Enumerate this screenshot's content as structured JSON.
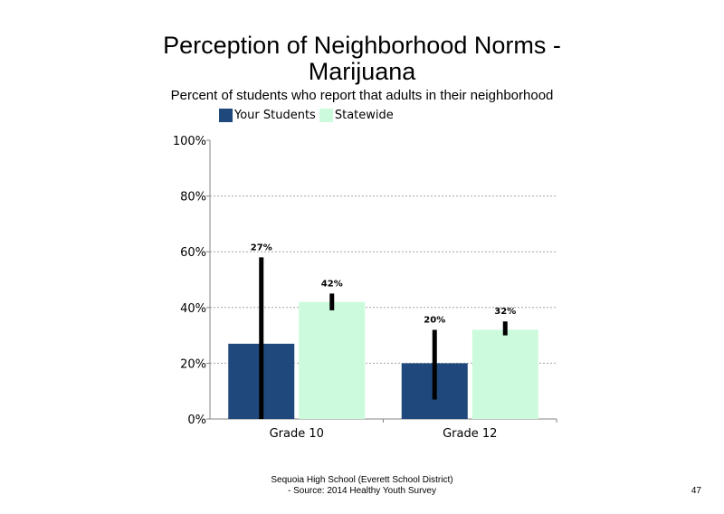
{
  "title_line1": "Perception of Neighborhood Norms -",
  "title_line2": "Marijuana",
  "subtitle": "Percent of students who report that adults in their neighborhood",
  "footer_line1": "Sequoia High School (Everett School District)",
  "footer_line2": "- Source: 2014 Healthy Youth Survey",
  "page_number": "47",
  "chart_data": {
    "type": "bar",
    "title": "Perception of Neighborhood Norms - Marijuana",
    "subtitle": "Percent of students who report that adults in their neighborhood",
    "categories": [
      "Grade 10",
      "Grade 12"
    ],
    "series": [
      {
        "name": "Your Students",
        "color": "#1f497d",
        "values": [
          27,
          20
        ],
        "labels": [
          "27%",
          "20%"
        ],
        "error_low": [
          0,
          7
        ],
        "error_high": [
          58,
          32
        ]
      },
      {
        "name": "Statewide",
        "color": "#ccfadc",
        "values": [
          42,
          32
        ],
        "labels": [
          "42%",
          "32%"
        ],
        "error_low": [
          39,
          30
        ],
        "error_high": [
          45,
          35
        ]
      }
    ],
    "ylim": [
      0,
      100
    ],
    "yticks": [
      0,
      20,
      40,
      60,
      80,
      100
    ],
    "ytick_labels": [
      "0%",
      "20%",
      "40%",
      "60%",
      "80%",
      "100%"
    ],
    "grid": true,
    "legend_position": "top-left"
  }
}
